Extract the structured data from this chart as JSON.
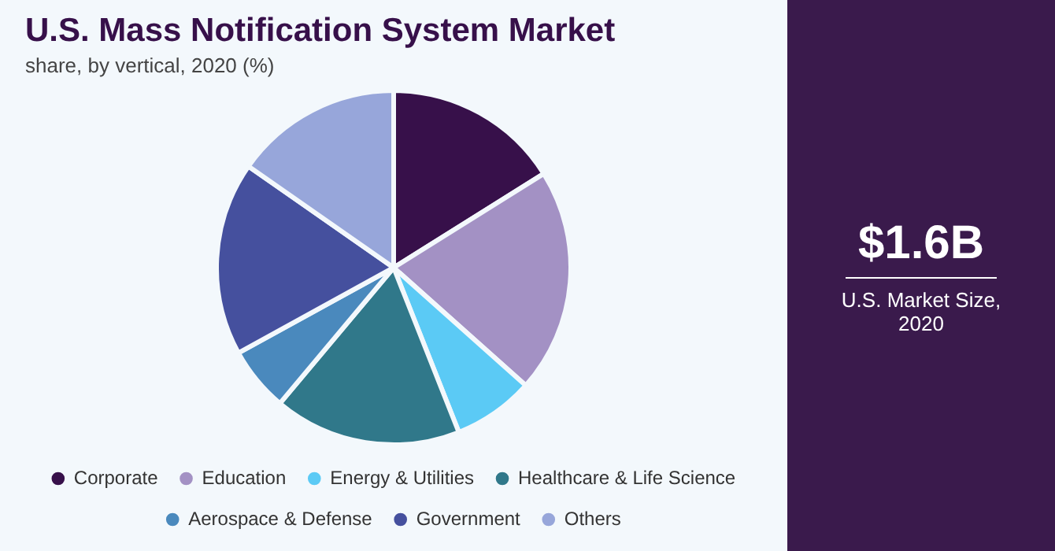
{
  "chart_data": {
    "type": "pie",
    "title": "U.S. Mass Notification System Market",
    "subtitle": "share, by vertical, 2020 (%)",
    "categories": [
      "Corporate",
      "Education",
      "Energy & Utilities",
      "Healthcare & Life Science",
      "Aerospace & Defense",
      "Government",
      "Others"
    ],
    "values": [
      16.1,
      20.5,
      7.4,
      17.1,
      5.9,
      17.7,
      15.3
    ],
    "colors": [
      "#37104a",
      "#a391c4",
      "#5bcaf5",
      "#30788a",
      "#4a89bd",
      "#45509e",
      "#97a6da"
    ],
    "legend": "bottom",
    "annotations": [
      "$1.6B",
      "U.S. Market Size, 2020"
    ]
  }
}
